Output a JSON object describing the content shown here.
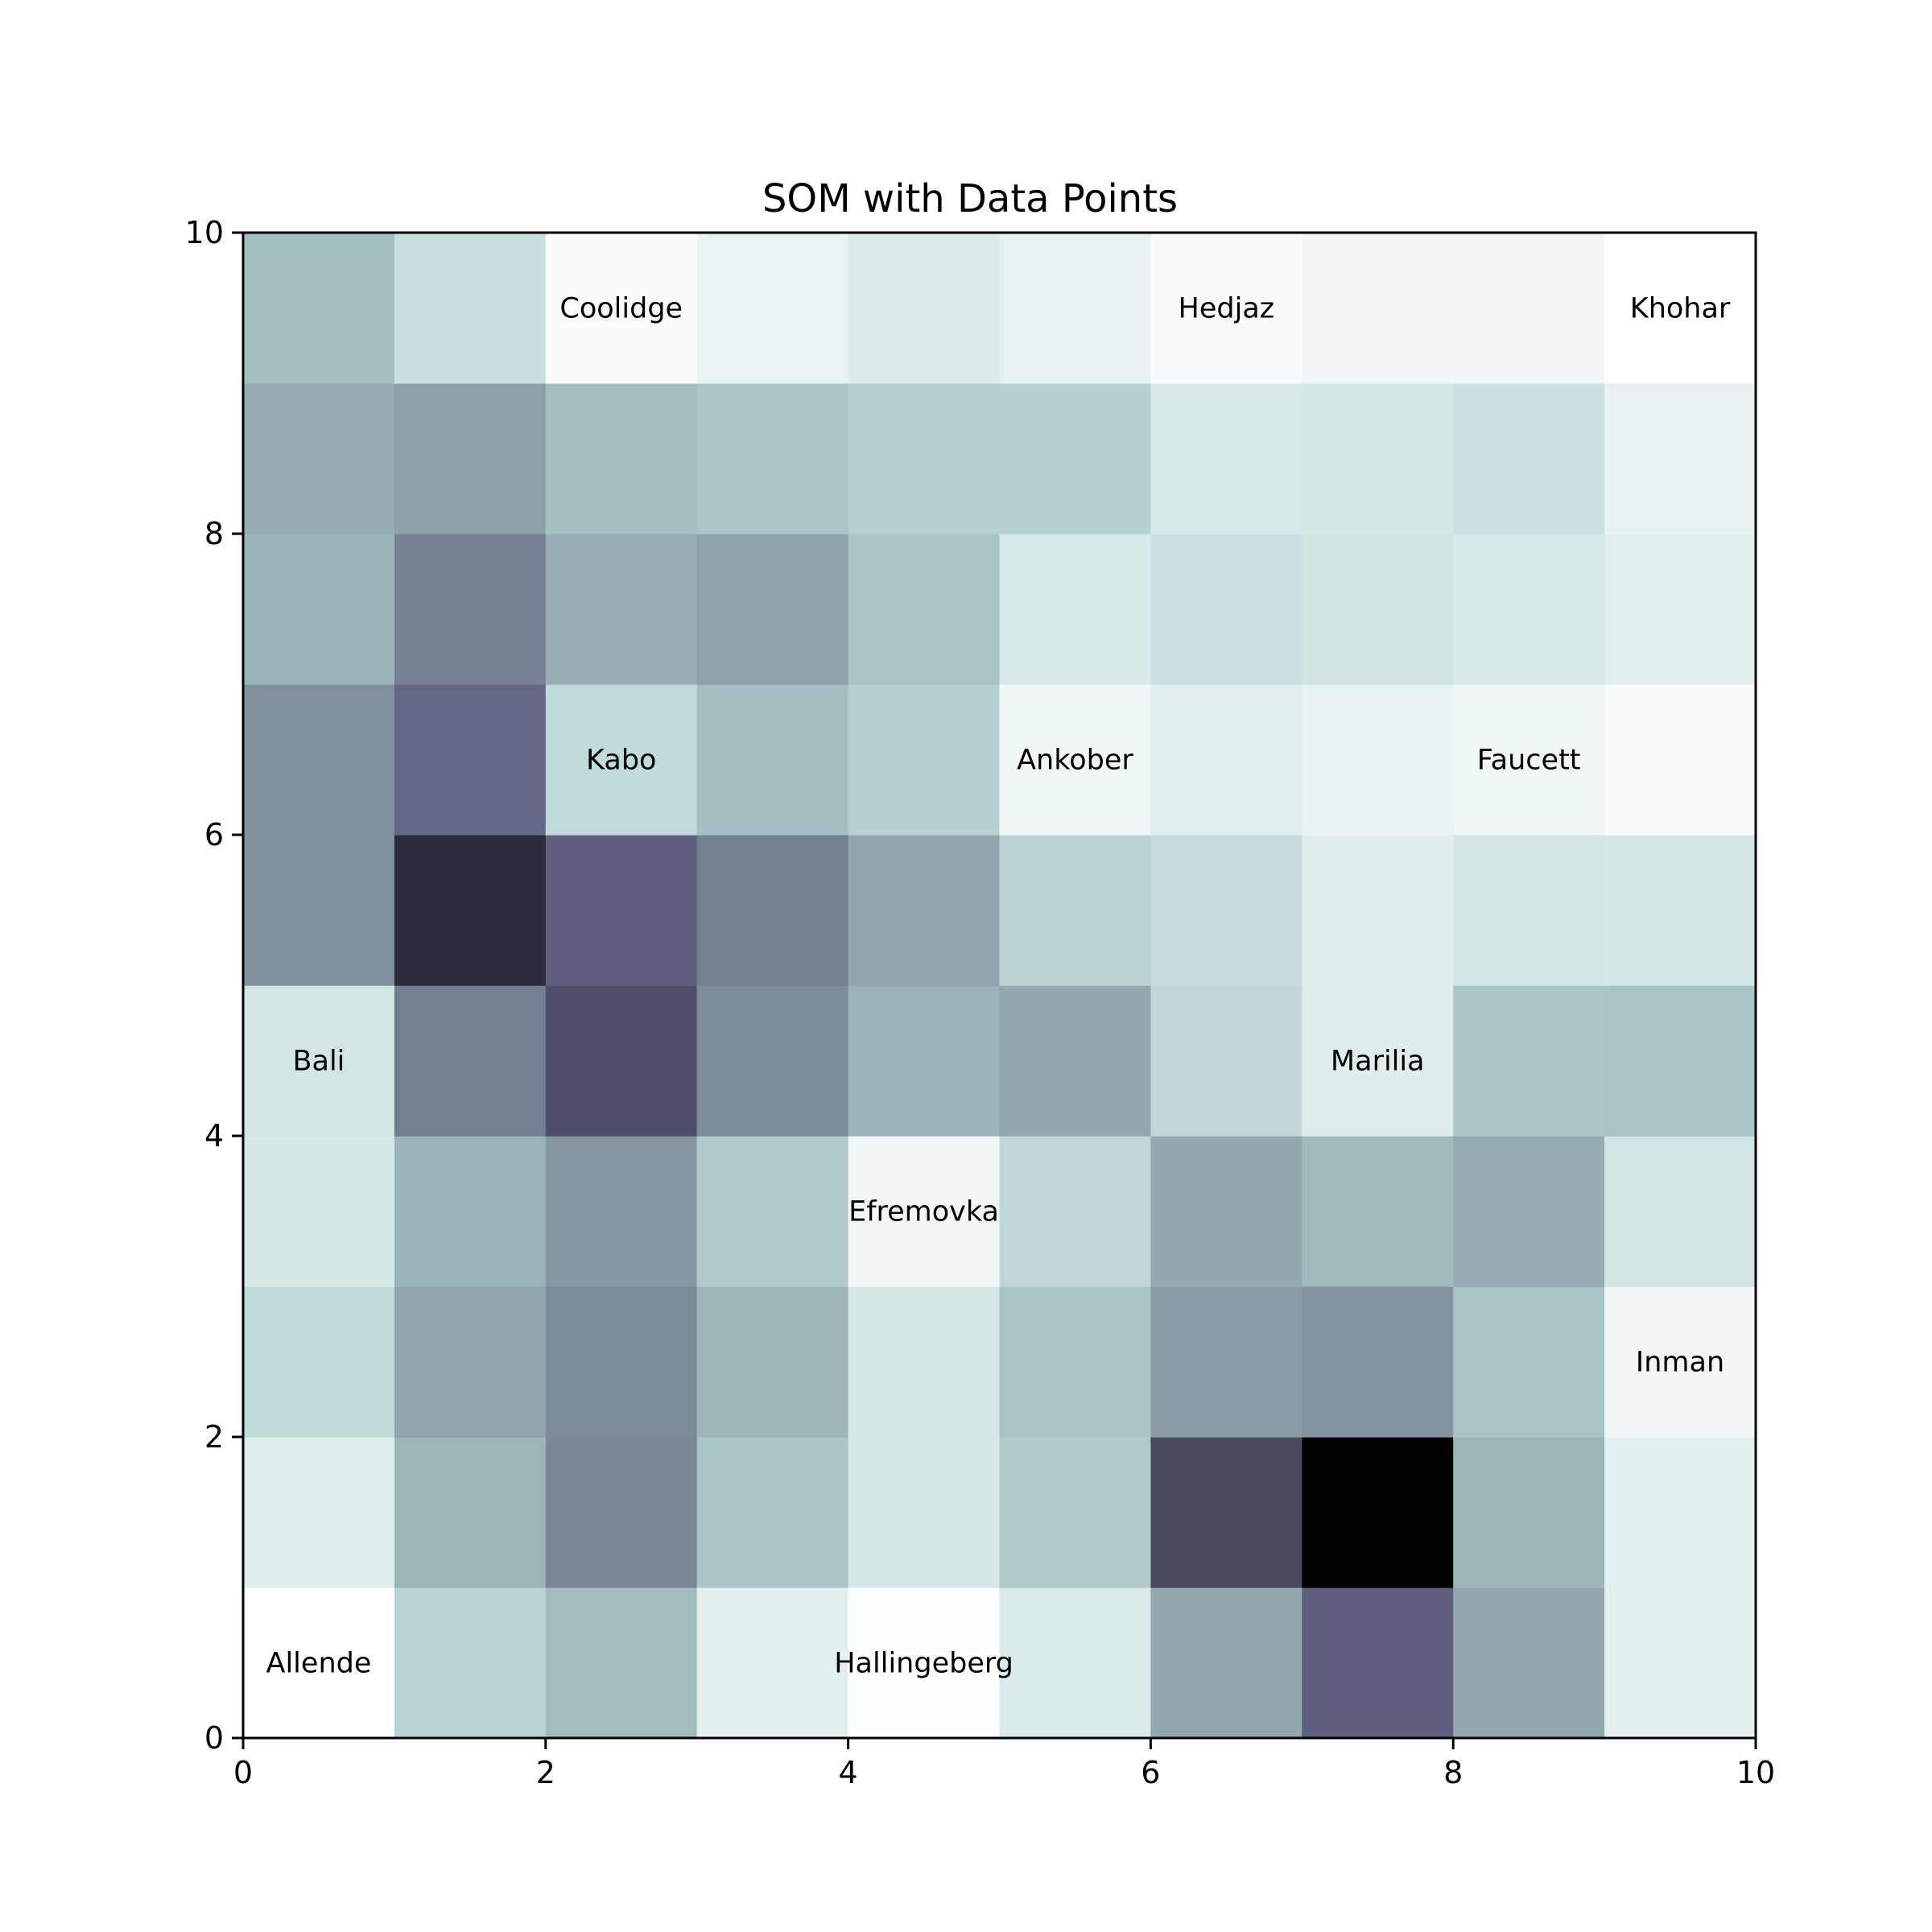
{
  "chart_data": {
    "type": "heatmap",
    "title": "SOM with Data Points",
    "xlabel": "",
    "ylabel": "",
    "xlim": [
      0,
      10
    ],
    "ylim": [
      0,
      10
    ],
    "x_ticks": [
      "0",
      "2",
      "4",
      "6",
      "8",
      "10"
    ],
    "y_ticks": [
      "0",
      "2",
      "4",
      "6",
      "8",
      "10"
    ],
    "colormap": "bone_r",
    "grid": false,
    "grid_size": [
      10,
      10
    ],
    "values": [
      [
        0.0,
        0.3,
        0.4,
        0.12,
        0.01,
        0.16,
        0.48,
        0.75,
        0.49,
        0.12
      ],
      [
        0.14,
        0.43,
        0.62,
        0.36,
        0.18,
        0.34,
        0.82,
        1.0,
        0.43,
        0.12
      ],
      [
        0.27,
        0.5,
        0.61,
        0.43,
        0.19,
        0.37,
        0.54,
        0.57,
        0.37,
        0.06
      ],
      [
        0.18,
        0.44,
        0.55,
        0.34,
        0.06,
        0.28,
        0.48,
        0.41,
        0.47,
        0.2
      ],
      [
        0.2,
        0.65,
        0.8,
        0.6,
        0.44,
        0.48,
        0.28,
        0.14,
        0.36,
        0.37
      ],
      [
        0.58,
        0.91,
        0.75,
        0.65,
        0.5,
        0.3,
        0.26,
        0.14,
        0.2,
        0.19
      ],
      [
        0.58,
        0.72,
        0.27,
        0.39,
        0.31,
        0.07,
        0.13,
        0.1,
        0.07,
        0.03
      ],
      [
        0.44,
        0.64,
        0.46,
        0.51,
        0.37,
        0.17,
        0.23,
        0.21,
        0.17,
        0.13
      ],
      [
        0.47,
        0.52,
        0.39,
        0.36,
        0.31,
        0.31,
        0.17,
        0.18,
        0.23,
        0.1
      ],
      [
        0.39,
        0.24,
        0.02,
        0.09,
        0.15,
        0.1,
        0.03,
        0.06,
        0.06,
        0.0
      ]
    ],
    "points": [
      {
        "label": "Coolidge",
        "x": 2.5,
        "y": 9.5
      },
      {
        "label": "Hedjaz",
        "x": 6.5,
        "y": 9.5
      },
      {
        "label": "Khohar",
        "x": 9.5,
        "y": 9.5
      },
      {
        "label": "Kabo",
        "x": 2.5,
        "y": 6.5
      },
      {
        "label": "Ankober",
        "x": 5.5,
        "y": 6.5
      },
      {
        "label": "Faucett",
        "x": 8.5,
        "y": 6.5
      },
      {
        "label": "Bali",
        "x": 0.5,
        "y": 4.5
      },
      {
        "label": "Marilia",
        "x": 7.5,
        "y": 4.5
      },
      {
        "label": "Efremovka",
        "x": 4.5,
        "y": 3.5
      },
      {
        "label": "Inman",
        "x": 9.5,
        "y": 2.5
      },
      {
        "label": "Allende",
        "x": 0.5,
        "y": 0.5
      },
      {
        "label": "Hallingeberg",
        "x": 4.5,
        "y": 0.5
      }
    ]
  }
}
